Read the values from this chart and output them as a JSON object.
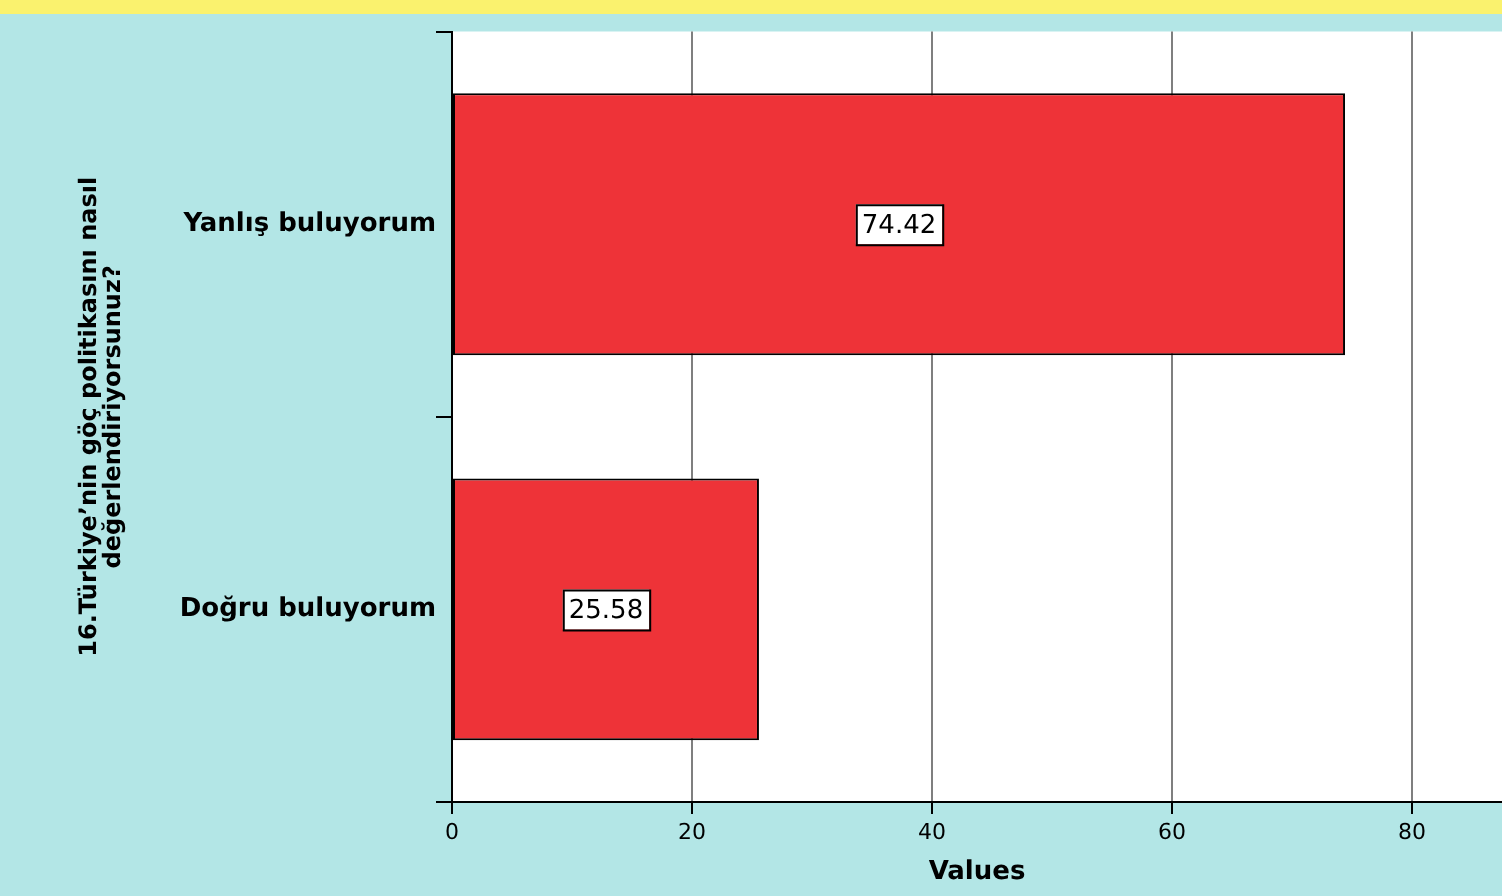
{
  "chart_data": {
    "type": "bar",
    "orientation": "horizontal",
    "ylabel": "16.Türkiye’nin göç politikasını nasıl değerlendiriyorsunuz?",
    "xlabel": "Values",
    "categories": [
      "Yanlış buluyorum",
      "Doğru buluyorum"
    ],
    "values": [
      74.42,
      25.58
    ],
    "color": "#ee3338",
    "xlim": [
      0,
      87.5
    ],
    "xticks": [
      0,
      20,
      40,
      60,
      80
    ],
    "grid": "x",
    "legend": false,
    "data_labels": true
  }
}
